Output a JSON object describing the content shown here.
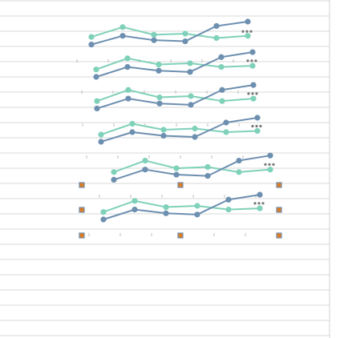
{
  "chart_data": [
    {
      "type": "line",
      "series": [
        {
          "color": "#7fd1b9",
          "values": [
            3,
            12,
            5,
            6,
            2,
            4
          ]
        },
        {
          "color": "#6d8fb0",
          "values": [
            -4,
            4,
            0,
            -1,
            13,
            17
          ]
        }
      ]
    },
    {
      "type": "line",
      "series": [
        {
          "color": "#7fd1b9",
          "values": [
            1,
            10,
            5,
            6,
            3,
            4
          ]
        },
        {
          "color": "#6d8fb0",
          "values": [
            -5,
            3,
            0,
            -1,
            11,
            15
          ]
        }
      ]
    },
    {
      "type": "line",
      "series": [
        {
          "color": "#7fd1b9",
          "values": [
            2,
            11,
            5,
            6,
            2,
            4
          ]
        },
        {
          "color": "#6d8fb0",
          "values": [
            -4,
            4,
            0,
            -1,
            11,
            15
          ]
        }
      ]
    },
    {
      "type": "line",
      "series": [
        {
          "color": "#7fd1b9",
          "values": [
            1,
            10,
            5,
            6,
            3,
            4
          ]
        },
        {
          "color": "#6d8fb0",
          "values": [
            -5,
            3,
            0,
            -1,
            11,
            15
          ]
        }
      ]
    },
    {
      "type": "line",
      "series": [
        {
          "color": "#7fd1b9",
          "values": [
            2,
            11,
            5,
            6,
            2,
            4
          ]
        },
        {
          "color": "#6d8fb0",
          "values": [
            -4,
            4,
            0,
            -1,
            11,
            15
          ]
        }
      ]
    },
    {
      "type": "line",
      "series": [
        {
          "color": "#7fd1b9",
          "values": [
            1,
            10,
            5,
            6,
            3,
            4
          ]
        },
        {
          "color": "#6d8fb0",
          "values": [
            -5,
            3,
            0,
            -1,
            11,
            15
          ]
        }
      ]
    }
  ],
  "colors": {
    "grid": "#d8d8d8",
    "handle_fill": "#e07b1f",
    "handle_stroke": "#6d8fb0"
  },
  "icons": {
    "more": "more-dots-icon",
    "handle": "resize-handle-icon"
  }
}
